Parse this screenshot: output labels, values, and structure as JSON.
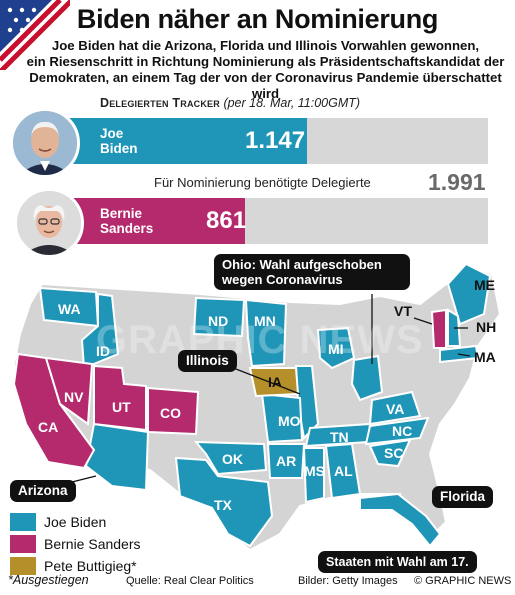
{
  "title": "Biden näher an Nominierung",
  "subtitle_lines": [
    "Joe Biden hat die Arizona, Florida und Illinois Vorwahlen gewonnen,",
    "ein Riesenschritt in Richtung Nominierung als Präsidentschaftskandidat der",
    "Demokraten, an einem Tag der von der Coronavirus Pandemie überschattet wird"
  ],
  "tracker": {
    "heading": "Delegierten Tracker",
    "note": "(per 18. Mar, 11:00GMT)",
    "needed_label": "Für Nominierung benötigte Delegierte",
    "needed_value": "1.991"
  },
  "chart_data": {
    "type": "bar",
    "categories": [
      "Joe Biden",
      "Bernie Sanders"
    ],
    "values": [
      1147,
      861
    ],
    "value_labels": [
      "1.147",
      "861"
    ],
    "name_lines": [
      [
        "Joe",
        "Biden"
      ],
      [
        "Bernie",
        "Sanders"
      ]
    ],
    "colors": [
      "#1f96b7",
      "#b42a6c"
    ],
    "target": 1991
  },
  "states": {
    "biden": [
      "WA",
      "ID",
      "ND",
      "MN",
      "MI",
      "MO",
      "OK",
      "AR",
      "TX",
      "MS",
      "AL",
      "TN",
      "VA",
      "NC",
      "SC",
      "OH",
      "FL",
      "AZ",
      "IL",
      "ME",
      "NH",
      "MA"
    ],
    "sanders": [
      "CA",
      "NV",
      "UT",
      "CO",
      "VT"
    ],
    "buttigieg": [
      "IA"
    ]
  },
  "map_labels": [
    "WA",
    "ND",
    "MN",
    "NV",
    "UT",
    "CO",
    "CA",
    "IA",
    "MI",
    "MO",
    "OK",
    "AR",
    "TN",
    "VA",
    "NC",
    "SC",
    "MS",
    "AL",
    "TX",
    "ME",
    "VT",
    "NH",
    "MA",
    "ID"
  ],
  "callouts": {
    "ohio": "Ohio: Wahl aufgeschoben wegen Coronavirus",
    "illinois": "Illinois",
    "arizona": "Arizona",
    "florida": "Florida",
    "march17": "Staaten mit Wahl am 17."
  },
  "legend": [
    {
      "label": "Joe Biden",
      "color": "#1f96b7"
    },
    {
      "label": "Bernie Sanders",
      "color": "#b42a6c"
    },
    {
      "label": "Pete Buttigieg*",
      "color": "#b58f2a"
    }
  ],
  "footer": {
    "footnote": "*Ausgestiegen",
    "source": "Quelle: Real Clear Politics",
    "photos": "Bilder: Getty Images",
    "credit": "© GRAPHIC NEWS"
  },
  "watermark": "GRAPHIC NEWS",
  "colors": {
    "biden": "#1f96b7",
    "sanders": "#b42a6c",
    "buttigieg": "#b58f2a",
    "other": "#d4d4d4"
  }
}
